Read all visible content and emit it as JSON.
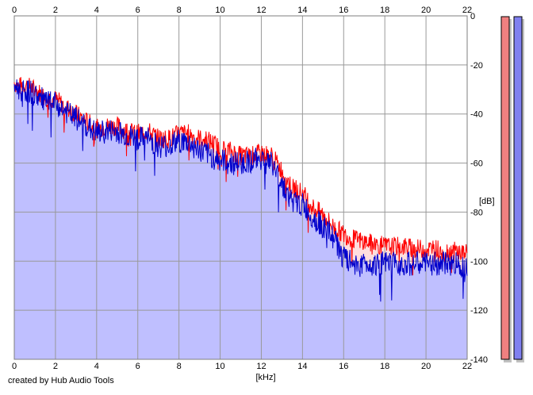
{
  "footer": {
    "credit": "created by Hub Audio Tools"
  },
  "chart_data": {
    "type": "area",
    "title": "",
    "xlabel": "[kHz]",
    "ylabel": "[dB]",
    "xlim": [
      0,
      22
    ],
    "ylim": [
      -140,
      0
    ],
    "x_ticks": [
      "0",
      "2",
      "4",
      "6",
      "8",
      "10",
      "12",
      "14",
      "16",
      "18",
      "20",
      "22"
    ],
    "y_ticks": [
      "0",
      "-20",
      "-40",
      "-60",
      "-80",
      "-100",
      "-120",
      "-140"
    ],
    "grid": true,
    "x": [
      0,
      0.2,
      0.5,
      1.0,
      1.5,
      2.0,
      2.5,
      3.0,
      3.5,
      4.0,
      4.5,
      5.0,
      5.5,
      6.0,
      6.5,
      7.0,
      7.5,
      8.0,
      8.5,
      9.0,
      9.5,
      10.0,
      10.5,
      11.0,
      11.5,
      12.0,
      12.5,
      13.0,
      13.5,
      14.0,
      14.5,
      15.0,
      15.5,
      16.0,
      16.5,
      17.0,
      17.5,
      18.0,
      18.5,
      19.0,
      19.5,
      20.0,
      20.5,
      21.0,
      21.5,
      22.0
    ],
    "series": [
      {
        "color": "#ff0000",
        "values": [
          -27,
          -29,
          -28,
          -30,
          -33,
          -34,
          -37,
          -40,
          -43,
          -46,
          -45,
          -45,
          -47,
          -48,
          -47,
          -50,
          -50,
          -48,
          -48,
          -50,
          -51,
          -54,
          -55,
          -57,
          -57,
          -56,
          -57,
          -63,
          -70,
          -72,
          -78,
          -81,
          -86,
          -89,
          -91,
          -92,
          -93,
          -94,
          -94,
          -94,
          -95,
          -95,
          -95,
          -96,
          -96,
          -97
        ]
      },
      {
        "color": "#0000cc",
        "values": [
          -28,
          -30,
          -30,
          -32,
          -35,
          -36,
          -39,
          -42,
          -45,
          -48,
          -47,
          -47,
          -49,
          -50,
          -50,
          -53,
          -53,
          -51,
          -52,
          -55,
          -57,
          -59,
          -60,
          -60,
          -59,
          -58,
          -60,
          -68,
          -76,
          -77,
          -82,
          -86,
          -90,
          -99,
          -101,
          -101,
          -101,
          -101,
          -101,
          -101,
          -101,
          -101,
          -101,
          -101,
          -101,
          -102
        ]
      }
    ],
    "area_color": "#bfbfff",
    "level_meters": [
      {
        "fill": "#f08080"
      },
      {
        "fill": "#8080f0"
      }
    ]
  }
}
